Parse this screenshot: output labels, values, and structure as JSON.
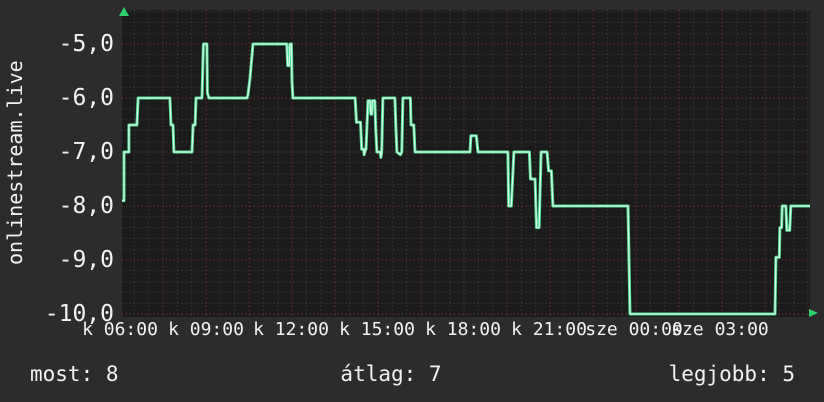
{
  "stats": {
    "most": "most: 8",
    "atlag": "átlag: 7",
    "legjobb": "legjobb: 5"
  },
  "chart_data": {
    "type": "line",
    "title": "onlinestream.live",
    "description": "Chart position over ~24h (values shown negated); steps between -5 and -10",
    "grid": "dotted, minor gray every 0.2 units / 30 min, major dark-red every 1 unit / 1.5 h",
    "legend_position": "none",
    "colors": {
      "line_core": "#d8fbe9",
      "line": "#4ddb92",
      "grid_minor": "#424242",
      "grid_major": "#8a3a3a",
      "plot_bg": "#1b1b1b",
      "outer_bg": "#2c2c2c",
      "axis_arrow": "#2dd26f",
      "text": "#f2f2f2"
    },
    "y_axis": {
      "tick_labels": [
        "-5,0",
        "-6,0",
        "-7,0",
        "-8,0",
        "-9,0",
        "-10,0"
      ],
      "tick_values": [
        -5,
        -6,
        -7,
        -8,
        -9,
        -10
      ],
      "range": [
        -10.06,
        -4.37
      ]
    },
    "x_axis": {
      "unit": "hours (k = kedd/Tue, sze = szerda/Wed)",
      "range_hours": [
        6.07,
        30.07
      ],
      "ticks": [
        {
          "label": "k 06:00",
          "hour": 6
        },
        {
          "label": "k 09:00",
          "hour": 9
        },
        {
          "label": "k 12:00",
          "hour": 12
        },
        {
          "label": "k 15:00",
          "hour": 15
        },
        {
          "label": "k 18:00",
          "hour": 18
        },
        {
          "label": "k 21:00",
          "hour": 21
        },
        {
          "label": "sze 00:00",
          "hour": 24
        },
        {
          "label": "sze 03:00",
          "hour": 27
        }
      ]
    },
    "series": [
      {
        "name": "onlinestream.live position",
        "points": [
          [
            6.07,
            -7.9
          ],
          [
            6.14,
            -7.9
          ],
          [
            6.14,
            -7.0
          ],
          [
            6.31,
            -7.0
          ],
          [
            6.31,
            -6.5
          ],
          [
            6.59,
            -6.5
          ],
          [
            6.63,
            -6.0
          ],
          [
            7.74,
            -6.0
          ],
          [
            7.78,
            -6.5
          ],
          [
            7.85,
            -6.5
          ],
          [
            7.88,
            -7.0
          ],
          [
            8.51,
            -7.0
          ],
          [
            8.55,
            -6.5
          ],
          [
            8.62,
            -6.5
          ],
          [
            8.65,
            -6.0
          ],
          [
            8.86,
            -6.0
          ],
          [
            8.91,
            -5.0
          ],
          [
            9.03,
            -5.0
          ],
          [
            9.05,
            -5.9
          ],
          [
            9.1,
            -6.0
          ],
          [
            10.43,
            -6.0
          ],
          [
            10.46,
            -5.95
          ],
          [
            10.53,
            -5.65
          ],
          [
            10.64,
            -5.0
          ],
          [
            11.82,
            -5.0
          ],
          [
            11.85,
            -5.4
          ],
          [
            11.9,
            -5.4
          ],
          [
            11.93,
            -5.0
          ],
          [
            11.98,
            -5.0
          ],
          [
            12.0,
            -5.7
          ],
          [
            12.03,
            -6.0
          ],
          [
            14.2,
            -6.0
          ],
          [
            14.25,
            -6.45
          ],
          [
            14.39,
            -6.45
          ],
          [
            14.43,
            -6.95
          ],
          [
            14.5,
            -6.95
          ],
          [
            14.52,
            -7.05
          ],
          [
            14.56,
            -6.95
          ],
          [
            14.58,
            -6.95
          ],
          [
            14.65,
            -6.05
          ],
          [
            14.72,
            -6.05
          ],
          [
            14.75,
            -6.3
          ],
          [
            14.78,
            -6.3
          ],
          [
            14.8,
            -6.05
          ],
          [
            14.89,
            -6.05
          ],
          [
            14.92,
            -6.55
          ],
          [
            14.96,
            -7.0
          ],
          [
            15.08,
            -7.0
          ],
          [
            15.1,
            -7.1
          ],
          [
            15.13,
            -7.0
          ],
          [
            15.17,
            -6.0
          ],
          [
            15.59,
            -6.0
          ],
          [
            15.62,
            -6.5
          ],
          [
            15.66,
            -7.0
          ],
          [
            15.78,
            -7.05
          ],
          [
            15.83,
            -7.0
          ],
          [
            15.87,
            -6.0
          ],
          [
            16.13,
            -6.0
          ],
          [
            16.15,
            -6.5
          ],
          [
            16.25,
            -6.5
          ],
          [
            16.29,
            -7.0
          ],
          [
            18.21,
            -7.0
          ],
          [
            18.24,
            -6.7
          ],
          [
            18.43,
            -6.7
          ],
          [
            18.49,
            -7.0
          ],
          [
            19.53,
            -7.0
          ],
          [
            19.56,
            -8.0
          ],
          [
            19.65,
            -8.0
          ],
          [
            19.74,
            -7.0
          ],
          [
            20.28,
            -7.0
          ],
          [
            20.32,
            -7.5
          ],
          [
            20.48,
            -7.5
          ],
          [
            20.53,
            -8.4
          ],
          [
            20.62,
            -8.4
          ],
          [
            20.69,
            -7.0
          ],
          [
            20.9,
            -7.0
          ],
          [
            20.95,
            -7.35
          ],
          [
            21.05,
            -7.35
          ],
          [
            21.1,
            -8.0
          ],
          [
            23.72,
            -8.0
          ],
          [
            23.79,
            -10.0
          ],
          [
            28.85,
            -10.0
          ],
          [
            28.88,
            -8.95
          ],
          [
            29.0,
            -8.95
          ],
          [
            29.02,
            -8.4
          ],
          [
            29.08,
            -8.4
          ],
          [
            29.1,
            -8.0
          ],
          [
            29.23,
            -8.0
          ],
          [
            29.26,
            -8.45
          ],
          [
            29.36,
            -8.45
          ],
          [
            29.4,
            -8.0
          ],
          [
            30.07,
            -8.0
          ]
        ]
      }
    ],
    "annotations": {
      "most": 8,
      "atlag": 7,
      "legjobb": 5
    }
  }
}
